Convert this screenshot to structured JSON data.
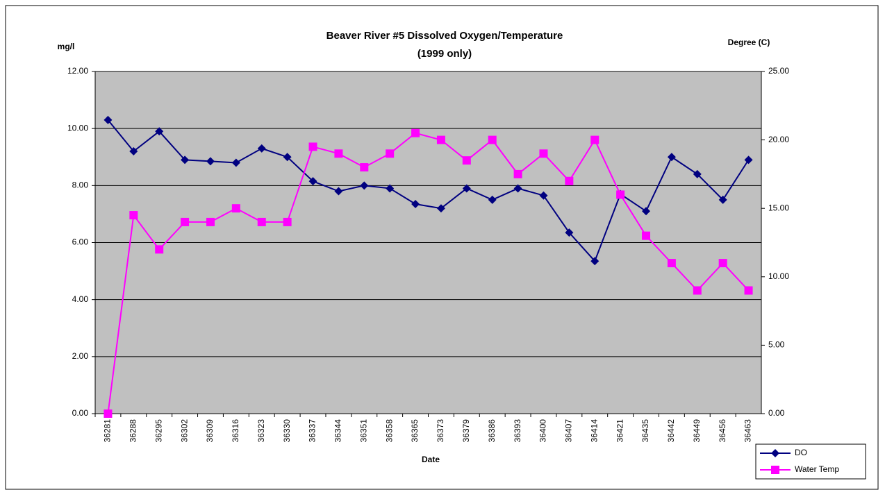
{
  "chart_data": {
    "type": "line",
    "title": "Beaver River #5 Dissolved Oxygen/Temperature",
    "subtitle": "(1999 only)",
    "y_label": "mg/l",
    "y2_label": "Degree (C)",
    "x_label": "Date",
    "categories": [
      "36281",
      "36288",
      "36295",
      "36302",
      "36309",
      "36316",
      "36323",
      "36330",
      "36337",
      "36344",
      "36351",
      "36358",
      "36365",
      "36373",
      "36379",
      "36386",
      "36393",
      "36400",
      "36407",
      "36414",
      "36421",
      "36435",
      "36442",
      "36449",
      "36456",
      "36463"
    ],
    "series": [
      {
        "name": "DO",
        "color": "#000080",
        "marker": "diamond",
        "values": [
          10.3,
          9.2,
          9.9,
          8.9,
          8.85,
          8.8,
          9.3,
          9.0,
          8.15,
          7.8,
          8.0,
          7.9,
          7.35,
          7.2,
          7.9,
          7.5,
          7.9,
          7.65,
          6.35,
          5.35,
          7.7,
          7.1,
          9.0,
          8.4,
          7.5,
          8.9
        ]
      },
      {
        "name": "Water Temp",
        "color": "#ff00ff",
        "marker": "square",
        "axis": "y2",
        "values": [
          0,
          14.5,
          12,
          14,
          14,
          15,
          14,
          14,
          19.5,
          19,
          18,
          19,
          20.5,
          20,
          18.5,
          20,
          17.5,
          19,
          17,
          20,
          16,
          13,
          11,
          9,
          11,
          9
        ]
      }
    ],
    "ylim": [
      0,
      12
    ],
    "yticks": [
      {
        "value": 0,
        "label": "0.00"
      },
      {
        "value": 2,
        "label": "2.00"
      },
      {
        "value": 4,
        "label": "4.00"
      },
      {
        "value": 6,
        "label": "6.00"
      },
      {
        "value": 8,
        "label": "8.00"
      },
      {
        "value": 10,
        "label": "10.00"
      },
      {
        "value": 12,
        "label": "12.00"
      }
    ],
    "y2lim": [
      0,
      25
    ],
    "y2ticks": [
      {
        "value": 0,
        "label": "0.00"
      },
      {
        "value": 5,
        "label": "5.00"
      },
      {
        "value": 10,
        "label": "10.00"
      },
      {
        "value": 15,
        "label": "15.00"
      },
      {
        "value": 20,
        "label": "20.00"
      },
      {
        "value": 25,
        "label": "25.00"
      }
    ],
    "grid": true,
    "plot_background": "#c0c0c0",
    "legend": "bottom-right"
  }
}
